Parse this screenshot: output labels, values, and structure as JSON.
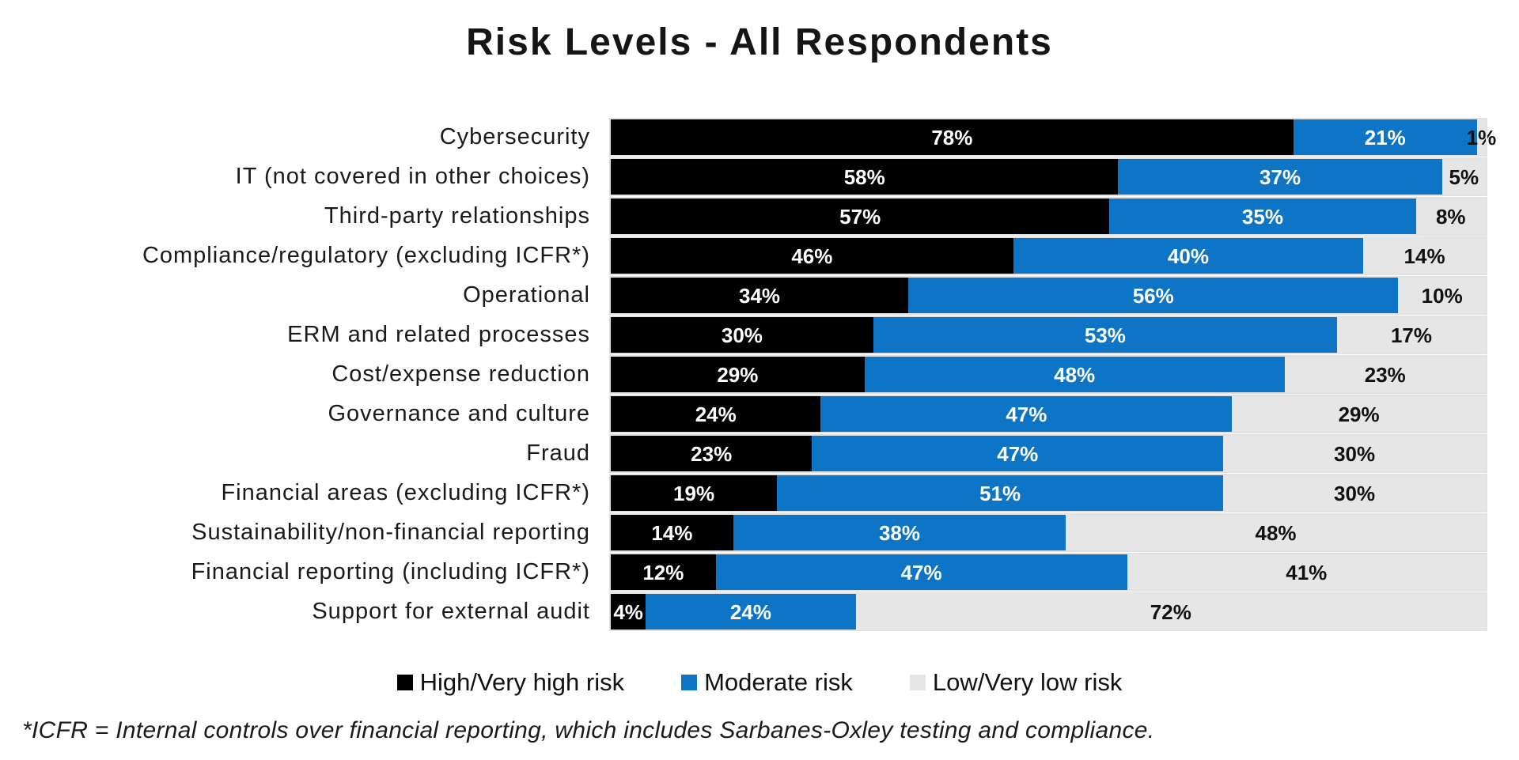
{
  "title": "Risk Levels - All Respondents",
  "footnote": "*ICFR = Internal controls over financial reporting, which includes Sarbanes-Oxley testing and compliance.",
  "chart_data": {
    "type": "bar",
    "orientation": "horizontal",
    "stacked": true,
    "title": "Risk Levels - All Respondents",
    "xlabel": "",
    "ylabel": "",
    "xlim": [
      0,
      100
    ],
    "grid": false,
    "value_suffix": "%",
    "legend_position": "bottom",
    "categories": [
      "Cybersecurity",
      "IT (not covered in other choices)",
      "Third-party relationships",
      "Compliance/regulatory (excluding ICFR*)",
      "Operational",
      "ERM and related processes",
      "Cost/expense reduction",
      "Governance and culture",
      "Fraud",
      "Financial areas (excluding ICFR*)",
      "Sustainability/non-financial reporting",
      "Financial reporting (including ICFR*)",
      "Support for external audit"
    ],
    "series": [
      {
        "name": "High/Very high risk",
        "color": "#000000",
        "label_color": "light",
        "values": [
          78,
          58,
          57,
          46,
          34,
          30,
          29,
          24,
          23,
          19,
          14,
          12,
          4
        ]
      },
      {
        "name": "Moderate risk",
        "color": "#0D74C6",
        "label_color": "light",
        "values": [
          21,
          37,
          35,
          40,
          56,
          53,
          48,
          47,
          47,
          51,
          38,
          47,
          24
        ]
      },
      {
        "name": "Low/Very low risk",
        "color": "#E6E6E6",
        "label_color": "dark",
        "values": [
          1,
          5,
          8,
          14,
          10,
          17,
          23,
          29,
          30,
          30,
          48,
          41,
          72
        ]
      }
    ]
  }
}
